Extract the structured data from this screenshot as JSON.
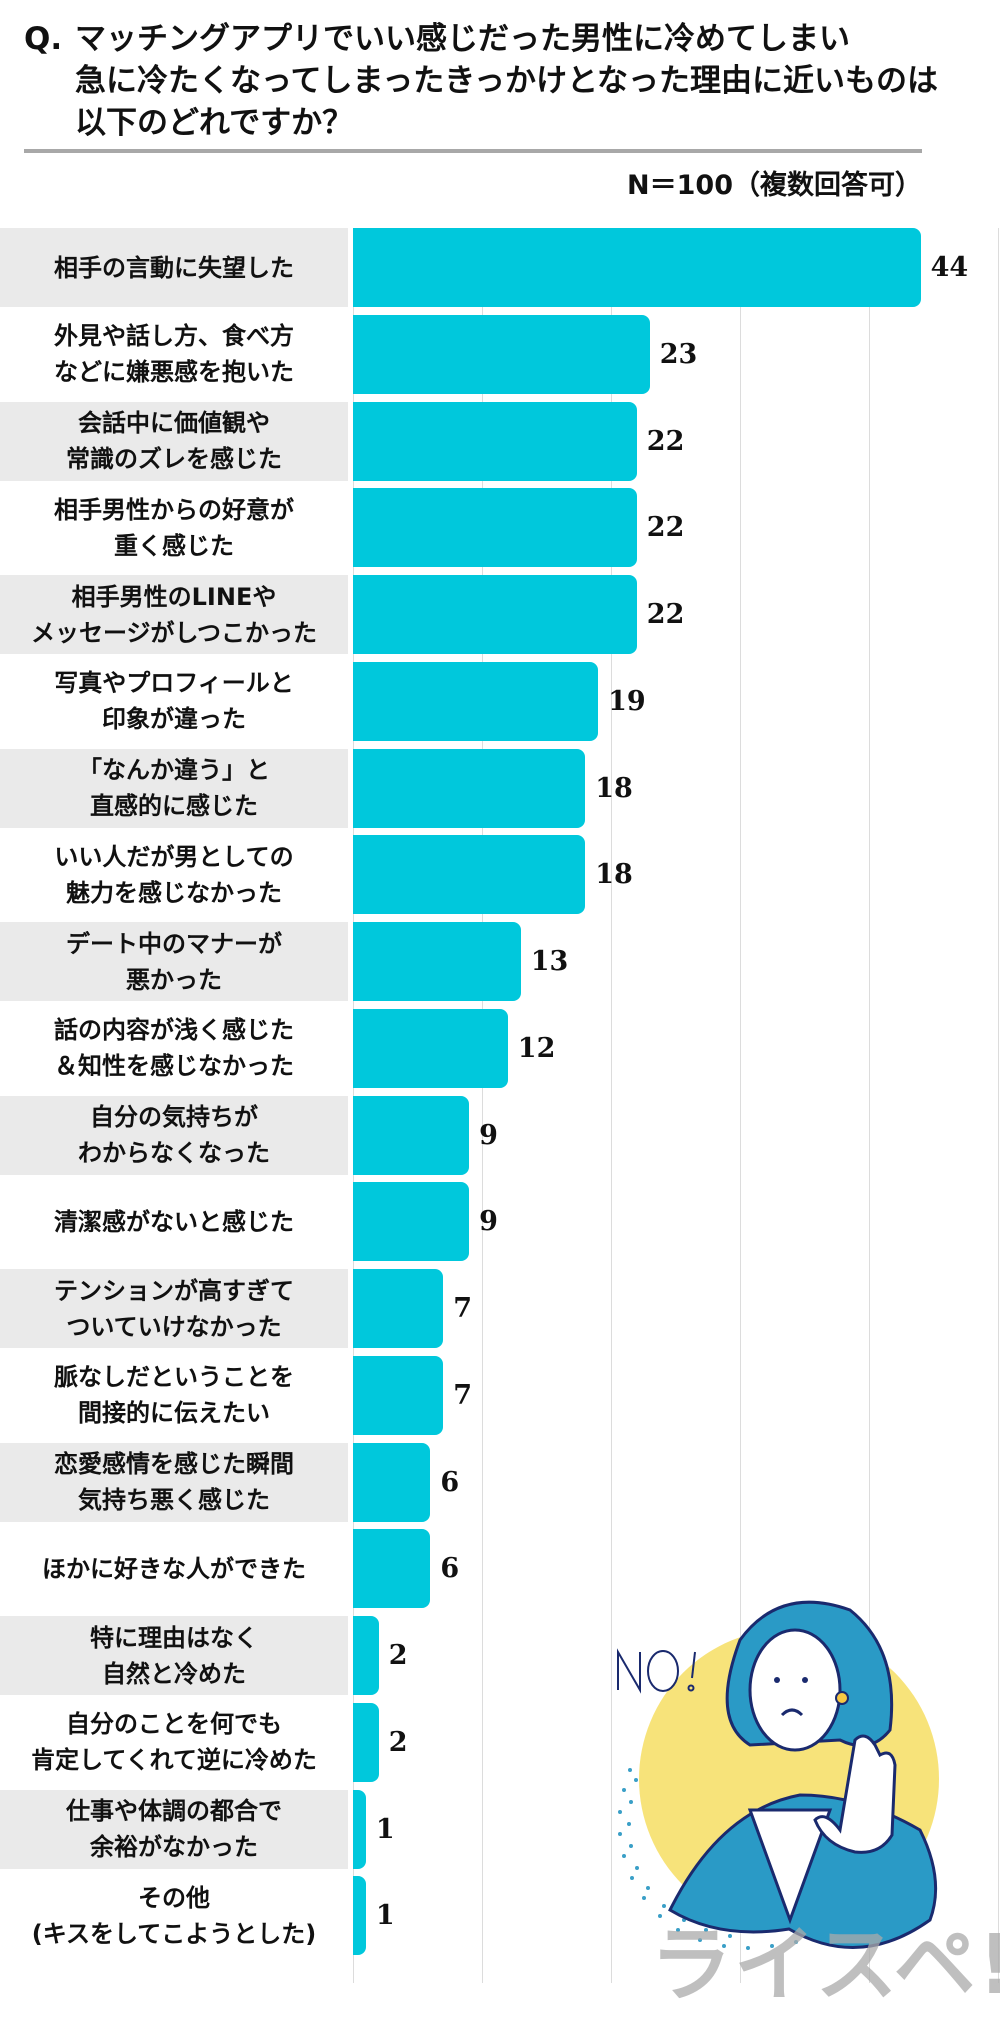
{
  "header": {
    "q_mark": "Q.",
    "question_lines": [
      "マッチングアプリでいい感じだった男性に冷めてしまい",
      "急に冷たくなってしまったきっかけとなった理由に近いものは",
      "以下のどれですか？"
    ],
    "sample_note": "N＝100（複数回答可）"
  },
  "colors": {
    "bar": "#00c8dc",
    "label_shade": "#eaeaea",
    "rule": "#a8a8a8",
    "gridline": "#dcdcdc"
  },
  "illustration": {
    "badge_text": "NO!",
    "watermark": "ライスペ!"
  },
  "chart_data": {
    "type": "bar",
    "orientation": "horizontal",
    "title": "マッチングアプリでいい感じだった男性に冷めてしまい急に冷たくなってしまったきっかけとなった理由に近いものは以下のどれですか？",
    "subtitle": "N＝100（複数回答可）",
    "xlabel": "",
    "ylabel": "",
    "xlim": [
      0,
      50
    ],
    "grid": true,
    "gridlines_at": [
      10,
      20,
      30,
      40,
      50
    ],
    "legend": null,
    "categories": [
      "相手の言動に失望した",
      "外見や話し方、食べ方\nなどに嫌悪感を抱いた",
      "会話中に価値観や\n常識のズレを感じた",
      "相手男性からの好意が\n重く感じた",
      "相手男性のLINEや\nメッセージがしつこかった",
      "写真やプロフィールと\n印象が違った",
      "「なんか違う」と\n直感的に感じた",
      "いい人だが男としての\n魅力を感じなかった",
      "デート中のマナーが\n悪かった",
      "話の内容が浅く感じた\n＆知性を感じなかった",
      "自分の気持ちが\nわからなくなった",
      "清潔感がないと感じた",
      "テンションが高すぎて\nついていけなかった",
      "脈なしだということを\n間接的に伝えたい",
      "恋愛感情を感じた瞬間\n気持ち悪く感じた",
      "ほかに好きな人ができた",
      "特に理由はなく\n自然と冷めた",
      "自分のことを何でも\n肯定してくれて逆に冷めた",
      "仕事や体調の都合で\n余裕がなかった",
      "その他\n(キスをしてこようとした)"
    ],
    "values": [
      44,
      23,
      22,
      22,
      22,
      19,
      18,
      18,
      13,
      12,
      9,
      9,
      7,
      7,
      6,
      6,
      2,
      2,
      1,
      1
    ]
  }
}
